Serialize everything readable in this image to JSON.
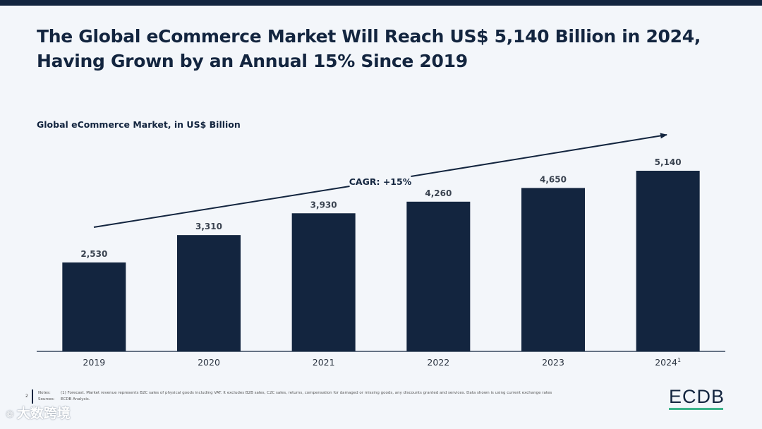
{
  "slide": {
    "title_line1": "The Global eCommerce Market Will Reach US$ 5,140 Billion in 2024,",
    "title_line2": "Having Grown by an Annual 15% Since 2019",
    "page_number": "2",
    "notes_label": "Notes:",
    "notes_text": "(1) Forecast. Market revenue represents B2C sales of physical goods including VAT. It excludes B2B sales, C2C sales, returns, compensation for damaged or missing goods, any discounts granted and services. Data shown is using current exchange rates",
    "sources_label": "Sources:",
    "sources_text": "ECDB Analysis.",
    "logo_text": "ECDB",
    "watermark_text": "大数跨境",
    "colors": {
      "bar": "#13253f",
      "accent": "#3bb38a",
      "background": "#f3f6fa"
    }
  },
  "chart_data": {
    "type": "bar",
    "title": "Global eCommerce Market, in US$ Billion",
    "categories": [
      "2019",
      "2020",
      "2021",
      "2022",
      "2023",
      "2024"
    ],
    "category_superscripts": [
      "",
      "",
      "",
      "",
      "",
      "1"
    ],
    "values": [
      2530,
      3310,
      3930,
      4260,
      4650,
      5140
    ],
    "value_labels": [
      "2,530",
      "3,310",
      "3,930",
      "4,260",
      "4,650",
      "5,140"
    ],
    "ylim": [
      0,
      5140
    ],
    "annotation": "CAGR: +15%",
    "grid": false,
    "legend": "none"
  }
}
